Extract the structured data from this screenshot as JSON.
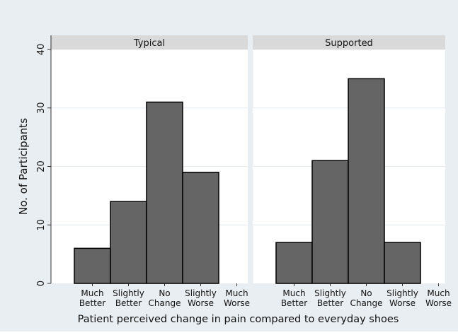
{
  "chart_data": {
    "type": "bar",
    "ylabel": "No. of Participants",
    "xlabel": "Patient perceived change in pain compared to everyday shoes",
    "ylim": [
      0,
      40
    ],
    "yticks": [
      0,
      10,
      20,
      30,
      40
    ],
    "grid": true,
    "legend": "none",
    "categories": [
      [
        "Much",
        "Better"
      ],
      [
        "Slightly",
        "Better"
      ],
      [
        "No",
        "Change"
      ],
      [
        "Slightly",
        "Worse"
      ],
      [
        "Much",
        "Worse"
      ]
    ],
    "panels": [
      {
        "title": "Typical",
        "values": [
          6,
          14,
          31,
          19,
          0
        ]
      },
      {
        "title": "Supported",
        "values": [
          7,
          21,
          35,
          7,
          0
        ]
      }
    ]
  },
  "colors": {
    "outer_background": "#e9eef2",
    "plot_background": "#ffffff",
    "panel_header": "#d9d9d9",
    "bar_fill": "#656565",
    "bar_stroke": "#000000",
    "grid": "#e6ecf0"
  }
}
